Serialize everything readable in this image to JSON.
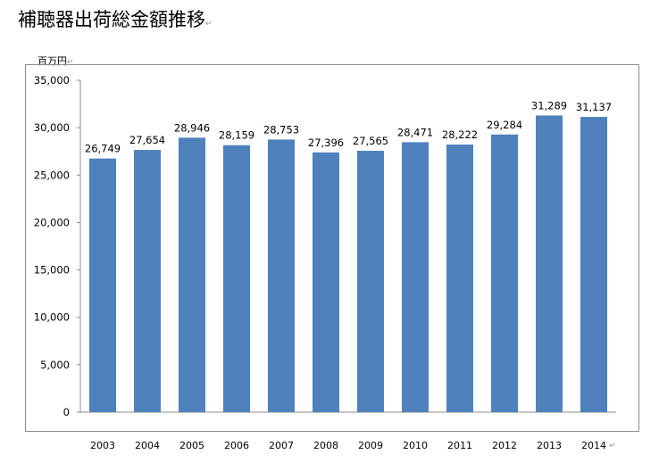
{
  "page": {
    "title": "補聴器出荷総金額推移"
  },
  "chart_data": {
    "type": "bar",
    "ylabel": "百万円",
    "categories": [
      "2003",
      "2004",
      "2005",
      "2006",
      "2007",
      "2008",
      "2009",
      "2010",
      "2011",
      "2012",
      "2013",
      "2014"
    ],
    "values": [
      26749,
      27654,
      28946,
      28159,
      28753,
      27396,
      27565,
      28471,
      28222,
      29284,
      31289,
      31137
    ],
    "data_labels": [
      "26,749",
      "27,654",
      "28,946",
      "28,159",
      "28,753",
      "27,396",
      "27,565",
      "28,471",
      "28,222",
      "29,284",
      "31,289",
      "31,137"
    ],
    "yticks": [
      "0",
      "5,000",
      "10,000",
      "15,000",
      "20,000",
      "25,000",
      "30,000",
      "35,000"
    ],
    "ylim": [
      0,
      35000
    ],
    "bar_color": "#4f81bd",
    "grid": false,
    "legend": "none"
  }
}
